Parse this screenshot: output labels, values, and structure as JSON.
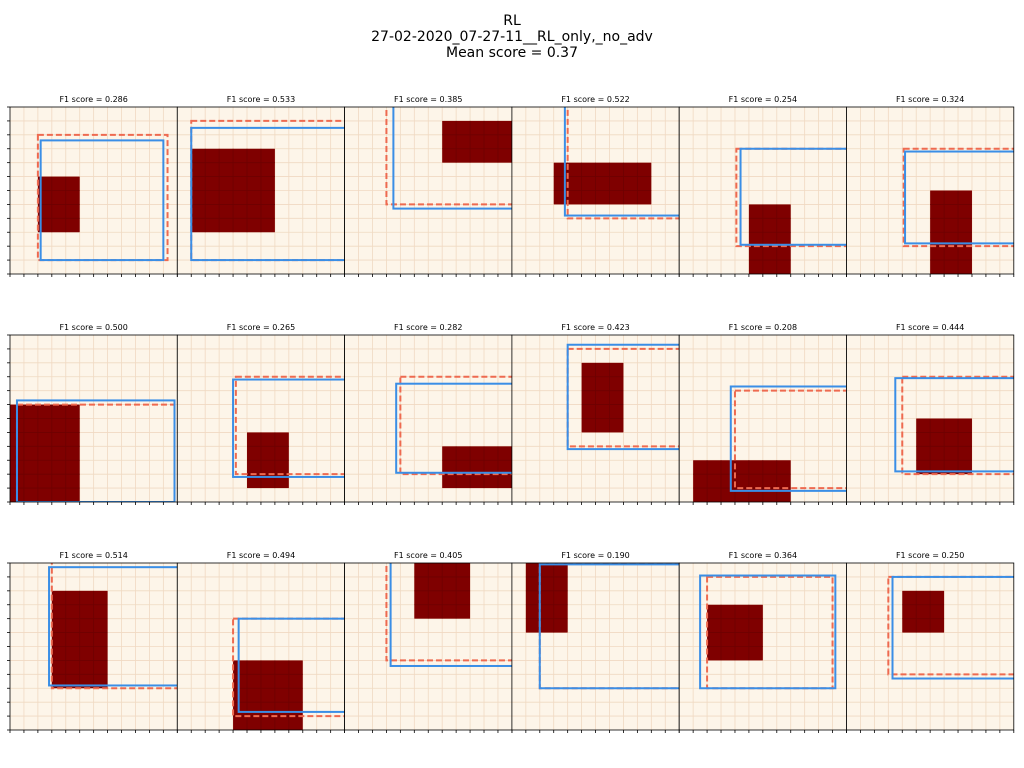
{
  "header": {
    "title": "RL",
    "run": "27-02-2020_07-27-11__RL_only,_no_adv",
    "mean_score": "Mean score = 0.37"
  },
  "colors": {
    "background": "#fdf5e9",
    "grid": "#f0d9c2",
    "block": "#7f0000",
    "blue_box": "#3a8ee6",
    "red_box": "#ee6a50"
  },
  "chart_data": {
    "type": "grid_panels",
    "rows": 3,
    "cols": 6,
    "grid_cells": 12,
    "panels": [
      {
        "title": "F1 score = 0.286",
        "block": [
          2,
          3,
          5,
          7
        ],
        "blue": [
          2.2,
          1.0,
          11.0,
          9.6
        ],
        "red": [
          2.0,
          1.0,
          11.3,
          10.0
        ]
      },
      {
        "title": "F1 score = 0.533",
        "block": [
          1,
          3,
          7,
          9
        ],
        "blue": [
          1.0,
          1.0,
          12.1,
          10.5
        ],
        "red": [
          1.0,
          1.0,
          12.1,
          11.0
        ]
      },
      {
        "title": "F1 score = 0.385",
        "block": [
          7,
          8,
          12,
          11
        ],
        "blue": [
          3.5,
          4.7,
          12.1,
          12.1
        ],
        "red": [
          3.0,
          5.0,
          12.1,
          12.1
        ]
      },
      {
        "title": "F1 score = 0.522",
        "block": [
          3,
          5,
          10,
          8
        ],
        "blue": [
          3.8,
          4.2,
          12.1,
          12.1
        ],
        "red": [
          4.0,
          4.0,
          12.1,
          12.1
        ]
      },
      {
        "title": "F1 score = 0.254",
        "block": [
          5,
          0,
          8,
          5
        ],
        "blue": [
          4.4,
          2.1,
          12.1,
          9.0
        ],
        "red": [
          4.1,
          2.0,
          12.1,
          9.0
        ]
      },
      {
        "title": "F1 score = 0.324",
        "block": [
          6,
          0,
          9,
          6
        ],
        "blue": [
          4.2,
          2.2,
          12.1,
          8.8
        ],
        "red": [
          4.1,
          2.0,
          12.1,
          9.0
        ]
      },
      {
        "title": "F1 score = 0.500",
        "block": [
          0,
          0,
          5,
          7
        ],
        "blue": [
          0.5,
          0,
          11.8,
          7.3
        ],
        "red": [
          0.5,
          0,
          11.8,
          7.0
        ]
      },
      {
        "title": "F1 score = 0.265",
        "block": [
          5,
          1,
          8,
          5
        ],
        "blue": [
          4.0,
          1.8,
          12.1,
          8.8
        ],
        "red": [
          4.2,
          2.0,
          12.1,
          9.0
        ]
      },
      {
        "title": "F1 score = 0.282",
        "block": [
          7,
          1,
          12,
          4
        ],
        "blue": [
          3.7,
          2.1,
          12.1,
          8.5
        ],
        "red": [
          4.0,
          2.0,
          12.1,
          9.0
        ]
      },
      {
        "title": "F1 score = 0.423",
        "block": [
          5,
          5,
          8,
          10
        ],
        "blue": [
          4.0,
          3.8,
          12.1,
          11.3
        ],
        "red": [
          4.0,
          4.0,
          12.1,
          11.0
        ]
      },
      {
        "title": "F1 score = 0.208",
        "block": [
          1,
          0,
          8,
          3
        ],
        "blue": [
          3.7,
          0.8,
          12.1,
          8.3
        ],
        "red": [
          4.0,
          1.0,
          12.1,
          8.0
        ]
      },
      {
        "title": "F1 score = 0.444",
        "block": [
          5,
          2,
          9,
          6
        ],
        "blue": [
          3.5,
          2.2,
          12.1,
          8.9
        ],
        "red": [
          4.0,
          2.0,
          12.1,
          9.0
        ]
      },
      {
        "title": "F1 score = 0.514",
        "block": [
          3,
          3,
          7,
          10
        ],
        "blue": [
          2.8,
          3.2,
          12.1,
          11.7
        ],
        "red": [
          3.0,
          3.0,
          12.1,
          12.1
        ]
      },
      {
        "title": "F1 score = 0.494",
        "block": [
          4,
          0,
          9,
          5
        ],
        "blue": [
          4.4,
          1.3,
          12.1,
          8.0
        ],
        "red": [
          4.0,
          1.0,
          12.1,
          8.0
        ]
      },
      {
        "title": "F1 score = 0.405",
        "block": [
          5,
          8,
          9,
          12
        ],
        "blue": [
          3.3,
          4.6,
          12.1,
          12.1
        ],
        "red": [
          3.0,
          5.0,
          12.1,
          12.1
        ]
      },
      {
        "title": "F1 score = 0.190",
        "block": [
          1,
          7,
          4,
          12
        ],
        "blue": [
          2.0,
          3.0,
          12.1,
          11.9
        ],
        "red": [
          2.0,
          3.0,
          12.1,
          12.0
        ]
      },
      {
        "title": "F1 score = 0.364",
        "block": [
          2,
          5,
          6,
          9
        ],
        "blue": [
          1.5,
          3.0,
          11.2,
          11.1
        ],
        "red": [
          2.0,
          3.0,
          11.0,
          11.0
        ]
      },
      {
        "title": "F1 score = 0.250",
        "block": [
          4,
          7,
          7,
          10
        ],
        "blue": [
          3.3,
          3.7,
          12.1,
          11.0
        ],
        "red": [
          3.0,
          4.0,
          12.1,
          11.0
        ]
      }
    ]
  }
}
